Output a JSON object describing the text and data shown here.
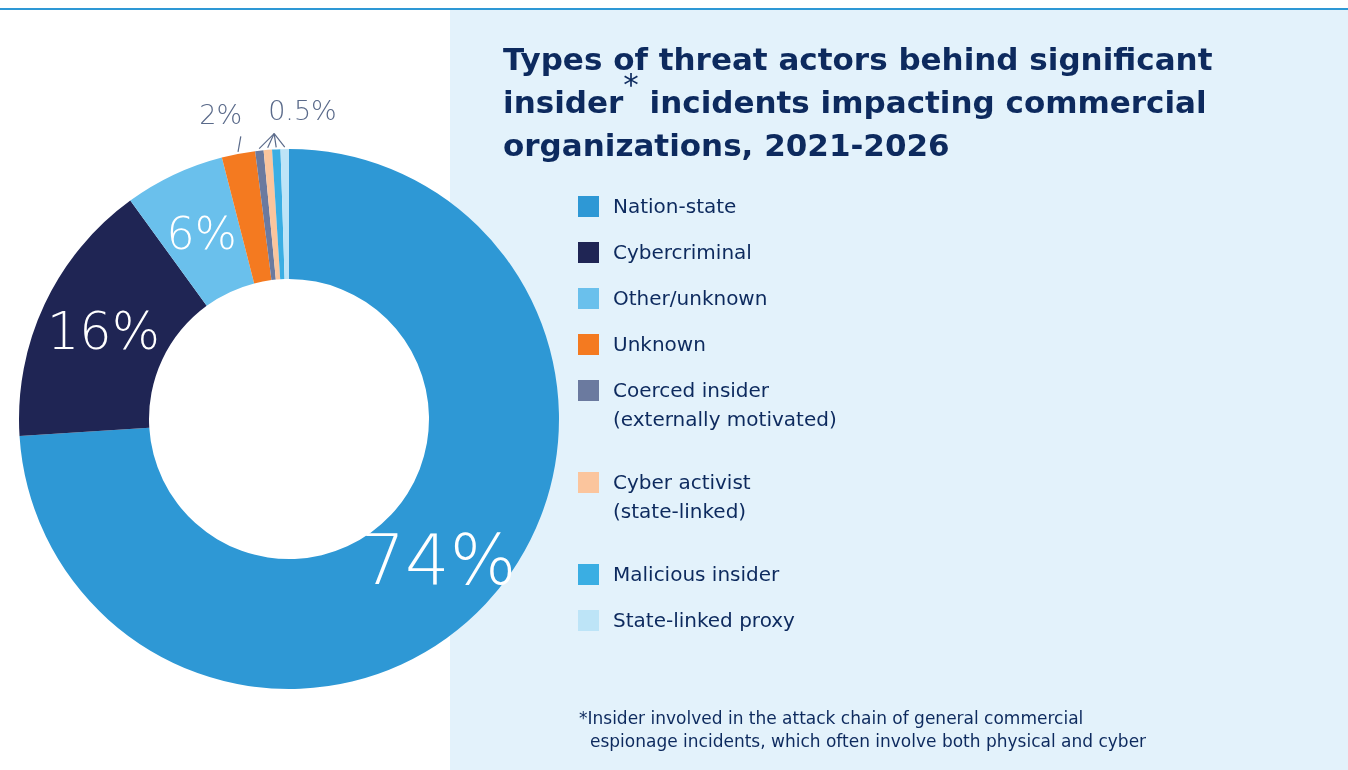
{
  "chart_data": {
    "type": "donut",
    "title": "Types of threat actors behind significant insider$^{*}$ incidents impacting commercial organizations, 2021-2026",
    "categories": [
      "Nation-state",
      "Cybercriminal",
      "Other/unknown",
      "Unknown",
      "Coerced insider (externally motivated)",
      "Cyber activist (state-linked)",
      "Malicious insider",
      "State-linked proxy"
    ],
    "values": [
      74,
      16,
      6,
      2,
      0.5,
      0.5,
      0.5,
      0.5
    ],
    "colors": [
      "#2e98d5",
      "#1f2554",
      "#6ac0ec",
      "#f47a20",
      "#6b7a9f",
      "#fbc59d",
      "#3aaee3",
      "#bde4f7"
    ],
    "value_labels": [
      "74%",
      "16%",
      "6%",
      "2%",
      "0.5%",
      null,
      null,
      null
    ],
    "legend": "right",
    "annotations": [
      "*Insider involved in the attack chain of general commercial espionage incidents, which often involve both physical and cyber"
    ]
  }
}
